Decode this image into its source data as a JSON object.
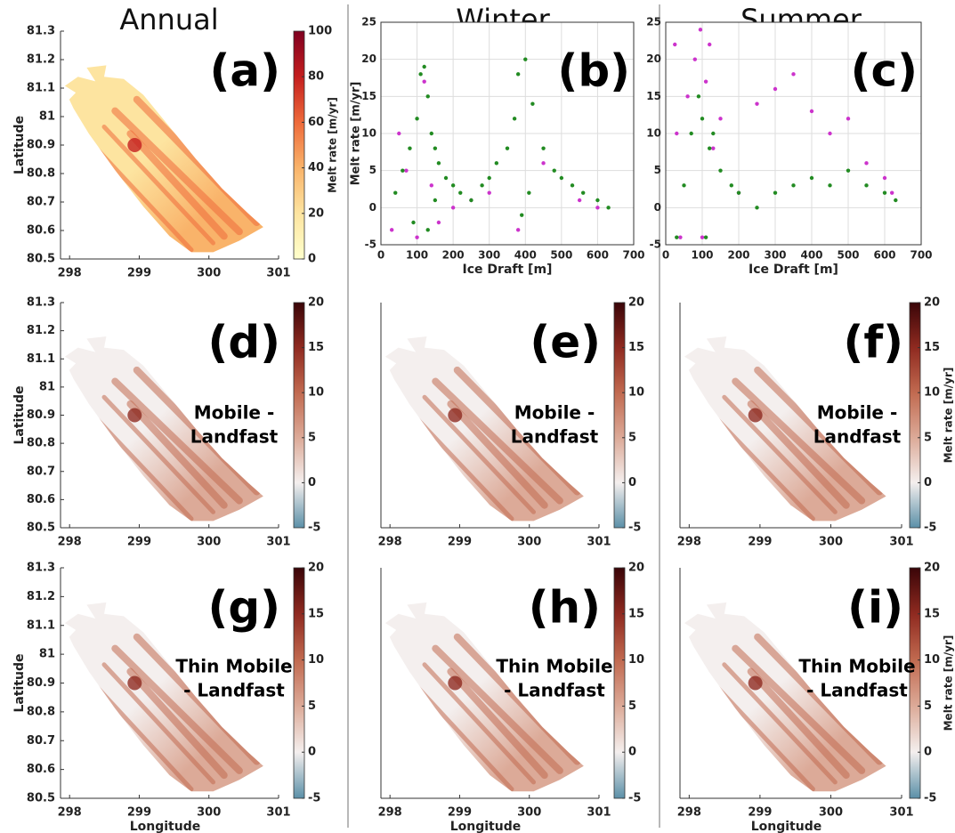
{
  "column_titles": [
    "Annual",
    "Winter",
    "Summer"
  ],
  "chart_data": [
    {
      "type": "map",
      "panel": "(a)",
      "xlim": [
        297.87,
        301
      ],
      "ylim": [
        80.5,
        81.3
      ],
      "xticks": [
        298,
        299,
        300,
        301
      ],
      "yticks": [
        80.5,
        80.6,
        80.7,
        80.8,
        80.9,
        81,
        81.1,
        81.2,
        81.3
      ],
      "ylabel": "Latitude",
      "colorbar": {
        "lim": [
          0,
          100
        ],
        "ticks": [
          0,
          20,
          40,
          60,
          80,
          100
        ],
        "label": "Melt rate [m/yr]",
        "colors": [
          "#ffffcc",
          "#fde4a0",
          "#f9b36a",
          "#ee6a3a",
          "#c41e1e",
          "#7f0020"
        ]
      }
    },
    {
      "type": "scatter",
      "panel": "(b)",
      "xlim": [
        0,
        700
      ],
      "ylim": [
        -5,
        25
      ],
      "xticks": [
        0,
        100,
        200,
        300,
        400,
        500,
        600,
        700
      ],
      "yticks": [
        -5,
        0,
        5,
        10,
        15,
        20,
        25
      ],
      "grid": true,
      "xlabel": "Ice Draft [m]",
      "ylabel": "Melt rate [m/yr]",
      "series": [
        {
          "color": "#cc33cc",
          "x": [
            30,
            50,
            70,
            100,
            120,
            140,
            160,
            200,
            250,
            300,
            380,
            450,
            550,
            600
          ],
          "values": [
            -3,
            10,
            5,
            -4,
            17,
            3,
            -2,
            0,
            1,
            2,
            -3,
            6,
            1,
            0
          ]
        },
        {
          "color": "#228b22",
          "x": [
            40,
            60,
            80,
            100,
            110,
            120,
            130,
            140,
            150,
            160,
            180,
            200,
            220,
            250,
            280,
            300,
            320,
            350,
            370,
            380,
            400,
            420,
            450,
            480,
            500,
            530,
            560,
            600,
            630,
            90,
            130,
            150,
            390,
            410
          ],
          "values": [
            2,
            5,
            8,
            12,
            18,
            19,
            15,
            10,
            8,
            6,
            4,
            3,
            2,
            1,
            3,
            4,
            6,
            8,
            12,
            18,
            20,
            14,
            8,
            5,
            4,
            3,
            2,
            1,
            0,
            -2,
            -3,
            1,
            -1,
            2
          ]
        }
      ]
    },
    {
      "type": "scatter",
      "panel": "(c)",
      "xlim": [
        0,
        700
      ],
      "ylim": [
        -5,
        25
      ],
      "xticks": [
        0,
        100,
        200,
        300,
        400,
        500,
        600,
        700
      ],
      "yticks": [
        -5,
        0,
        5,
        10,
        15,
        20,
        25
      ],
      "grid": true,
      "xlabel": "Ice Draft [m]",
      "series": [
        {
          "color": "#cc33cc",
          "x": [
            25,
            30,
            40,
            60,
            80,
            95,
            100,
            110,
            120,
            130,
            150,
            200,
            250,
            300,
            350,
            400,
            450,
            500,
            550,
            600,
            620
          ],
          "values": [
            22,
            10,
            -4,
            15,
            20,
            24,
            -4,
            17,
            22,
            8,
            12,
            2,
            14,
            16,
            18,
            13,
            10,
            12,
            6,
            4,
            2
          ]
        },
        {
          "color": "#228b22",
          "x": [
            30,
            50,
            70,
            90,
            100,
            110,
            120,
            130,
            150,
            180,
            200,
            250,
            300,
            350,
            400,
            450,
            500,
            550,
            600,
            630
          ],
          "values": [
            -4,
            3,
            10,
            15,
            12,
            -4,
            8,
            10,
            5,
            3,
            2,
            0,
            2,
            3,
            4,
            3,
            5,
            3,
            2,
            1
          ]
        }
      ]
    },
    {
      "type": "map",
      "panel": "(d)",
      "annotation": [
        "Mobile -",
        "Landfast"
      ],
      "xlim": [
        297.87,
        301
      ],
      "ylim": [
        80.5,
        81.3
      ],
      "xticks": [
        298,
        299,
        300,
        301
      ],
      "yticks": [
        80.5,
        80.6,
        80.7,
        80.8,
        80.9,
        81,
        81.1,
        81.2,
        81.3
      ],
      "ylabel": "Latitude",
      "colorbar": {
        "lim": [
          -5,
          20
        ],
        "ticks": [
          -5,
          0,
          5,
          10,
          15,
          20
        ],
        "colors": [
          "#5b90a8",
          "#f4efee",
          "#dcaa98",
          "#c16a50",
          "#8f2a20",
          "#3a0508"
        ]
      }
    },
    {
      "type": "map",
      "panel": "(e)",
      "annotation": [
        "Mobile -",
        "Landfast"
      ],
      "xlim": [
        297.87,
        301
      ],
      "ylim": [
        80.5,
        81.3
      ],
      "xticks": [
        298,
        299,
        300,
        301
      ],
      "colorbar": {
        "lim": [
          -5,
          20
        ],
        "ticks": [
          -5,
          0,
          5,
          10,
          15,
          20
        ],
        "colors": [
          "#5b90a8",
          "#f4efee",
          "#dcaa98",
          "#c16a50",
          "#8f2a20",
          "#3a0508"
        ]
      }
    },
    {
      "type": "map",
      "panel": "(f)",
      "annotation": [
        "Mobile -",
        "Landfast"
      ],
      "xlim": [
        297.87,
        301
      ],
      "ylim": [
        80.5,
        81.3
      ],
      "xticks": [
        298,
        299,
        300,
        301
      ],
      "colorbar": {
        "lim": [
          -5,
          20
        ],
        "ticks": [
          -5,
          0,
          5,
          10,
          15,
          20
        ],
        "label": "Melt rate [m/yr]",
        "colors": [
          "#5b90a8",
          "#f4efee",
          "#dcaa98",
          "#c16a50",
          "#8f2a20",
          "#3a0508"
        ]
      }
    },
    {
      "type": "map",
      "panel": "(g)",
      "annotation": [
        "Thin Mobile",
        "- Landfast"
      ],
      "xlim": [
        297.87,
        301
      ],
      "ylim": [
        80.5,
        81.3
      ],
      "xticks": [
        298,
        299,
        300,
        301
      ],
      "yticks": [
        80.5,
        80.6,
        80.7,
        80.8,
        80.9,
        81,
        81.1,
        81.2,
        81.3
      ],
      "ylabel": "Latitude",
      "xlabel": "Longitude",
      "colorbar": {
        "lim": [
          -5,
          20
        ],
        "ticks": [
          -5,
          0,
          5,
          10,
          15,
          20
        ],
        "colors": [
          "#5b90a8",
          "#f4efee",
          "#dcaa98",
          "#c16a50",
          "#8f2a20",
          "#3a0508"
        ]
      }
    },
    {
      "type": "map",
      "panel": "(h)",
      "annotation": [
        "Thin Mobile",
        "- Landfast"
      ],
      "xlim": [
        297.87,
        301
      ],
      "ylim": [
        80.5,
        81.3
      ],
      "xticks": [
        298,
        299,
        300,
        301
      ],
      "xlabel": "Longitude",
      "colorbar": {
        "lim": [
          -5,
          20
        ],
        "ticks": [
          -5,
          0,
          5,
          10,
          15,
          20
        ],
        "colors": [
          "#5b90a8",
          "#f4efee",
          "#dcaa98",
          "#c16a50",
          "#8f2a20",
          "#3a0508"
        ]
      }
    },
    {
      "type": "map",
      "panel": "(i)",
      "annotation": [
        "Thin Mobile",
        "- Landfast"
      ],
      "xlim": [
        297.87,
        301
      ],
      "ylim": [
        80.5,
        81.3
      ],
      "xticks": [
        298,
        299,
        300,
        301
      ],
      "xlabel": "Longitude",
      "colorbar": {
        "lim": [
          -5,
          20
        ],
        "ticks": [
          -5,
          0,
          5,
          10,
          15,
          20
        ],
        "label": "Melt rate [m/yr]",
        "colors": [
          "#5b90a8",
          "#f4efee",
          "#dcaa98",
          "#c16a50",
          "#8f2a20",
          "#3a0508"
        ]
      }
    }
  ]
}
